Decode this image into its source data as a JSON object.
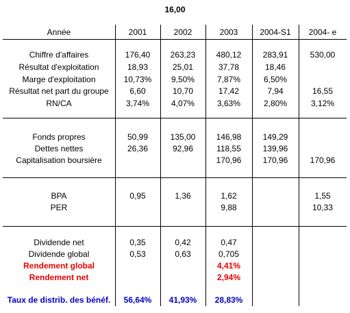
{
  "title": "16,00",
  "header": {
    "label": "Année",
    "years": [
      "2001",
      "2002",
      "2003",
      "2004-S1",
      "2004- e"
    ]
  },
  "section1": [
    {
      "label": "Chiffre d'affaires",
      "values": [
        "176,40",
        "263,23",
        "480,12",
        "283,91",
        "530,00"
      ]
    },
    {
      "label": "Résultat d'exploitation",
      "values": [
        "18,93",
        "25,01",
        "37,78",
        "18,46",
        ""
      ]
    },
    {
      "label": "Marge d'exploitation",
      "values": [
        "10,73%",
        "9,50%",
        "7,87%",
        "6,50%",
        ""
      ]
    },
    {
      "label": "Résultat net part du groupe",
      "values": [
        "6,60",
        "10,70",
        "17,42",
        "7,94",
        "16,55"
      ]
    },
    {
      "label": "RN/CA",
      "values": [
        "3,74%",
        "4,07%",
        "3,63%",
        "2,80%",
        "3,12%"
      ]
    }
  ],
  "section2": [
    {
      "label": "Fonds propres",
      "values": [
        "50,99",
        "135,00",
        "146,98",
        "149,29",
        ""
      ]
    },
    {
      "label": "Dettes nettes",
      "values": [
        "26,36",
        "92,96",
        "118,55",
        "139,96",
        ""
      ]
    },
    {
      "label": "Capitalisation boursière",
      "values": [
        "",
        "",
        "170,96",
        "170,96",
        "170,96"
      ]
    }
  ],
  "section3": [
    {
      "label": "BPA",
      "values": [
        "0,95",
        "1,36",
        "1,62",
        "",
        "1,55"
      ]
    },
    {
      "label": "PER",
      "values": [
        "",
        "",
        "9,88",
        "",
        "10,33"
      ]
    }
  ],
  "section4": [
    {
      "label": "Dividende net",
      "values": [
        "0,35",
        "0,42",
        "0,47",
        "",
        ""
      ]
    },
    {
      "label": "Dividende global",
      "values": [
        "0,53",
        "0,63",
        "0,705",
        "",
        ""
      ]
    },
    {
      "label": "Rendement global",
      "values": [
        "",
        "",
        "4,41%",
        "",
        ""
      ]
    },
    {
      "label": "Rendement net",
      "values": [
        "",
        "",
        "2,94%",
        "",
        ""
      ]
    },
    {
      "label": "Taux de distrib. des bénéf.",
      "values": [
        "56,64%",
        "41,93%",
        "28,83%",
        "",
        ""
      ]
    }
  ]
}
